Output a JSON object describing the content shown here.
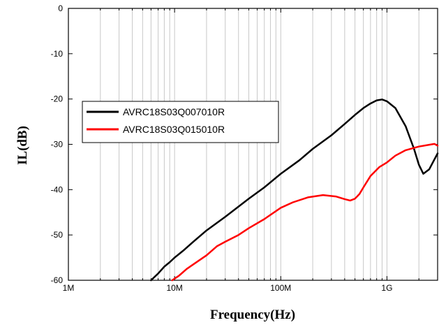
{
  "chart_data": {
    "type": "line",
    "title": "",
    "xlabel": "Frequency(Hz)",
    "ylabel": "IL(dB)",
    "xscale": "log",
    "xlim": [
      1000000,
      3000000000
    ],
    "ylim": [
      -60,
      0
    ],
    "grid": "vertical minor and major log gridlines",
    "legend_position": "upper-left",
    "x_tick_values": [
      1000000,
      10000000,
      100000000,
      1000000000
    ],
    "x_tick_labels": [
      "1M",
      "10M",
      "100M",
      "1G"
    ],
    "y_tick_values": [
      0,
      -10,
      -20,
      -30,
      -40,
      -50,
      -60
    ],
    "y_tick_labels": [
      "0",
      "-10",
      "-20",
      "-30",
      "-40",
      "-50",
      "-60"
    ],
    "series": [
      {
        "name": "AVRC18S03Q007010R",
        "color": "#000000",
        "points": [
          [
            6000000,
            -60
          ],
          [
            7000000,
            -58.5
          ],
          [
            8000000,
            -57
          ],
          [
            9000000,
            -56
          ],
          [
            10000000,
            -55
          ],
          [
            12000000,
            -53.5
          ],
          [
            15000000,
            -51.5
          ],
          [
            20000000,
            -49
          ],
          [
            30000000,
            -46
          ],
          [
            50000000,
            -42
          ],
          [
            70000000,
            -39.5
          ],
          [
            100000000,
            -36.5
          ],
          [
            150000000,
            -33.5
          ],
          [
            200000000,
            -31
          ],
          [
            300000000,
            -28
          ],
          [
            400000000,
            -25.5
          ],
          [
            500000000,
            -23.5
          ],
          [
            600000000,
            -22
          ],
          [
            700000000,
            -21
          ],
          [
            800000000,
            -20.3
          ],
          [
            900000000,
            -20.1
          ],
          [
            1000000000,
            -20.5
          ],
          [
            1200000000,
            -22
          ],
          [
            1500000000,
            -26
          ],
          [
            1800000000,
            -31
          ],
          [
            2000000000,
            -34.5
          ],
          [
            2200000000,
            -36.5
          ],
          [
            2500000000,
            -35.5
          ],
          [
            3000000000,
            -32
          ]
        ]
      },
      {
        "name": "AVRC18S03Q015010R",
        "color": "#ff0000",
        "points": [
          [
            9500000,
            -60
          ],
          [
            11000000,
            -59
          ],
          [
            13000000,
            -57.5
          ],
          [
            15000000,
            -56.5
          ],
          [
            20000000,
            -54.5
          ],
          [
            25000000,
            -52.5
          ],
          [
            30000000,
            -51.5
          ],
          [
            40000000,
            -50
          ],
          [
            50000000,
            -48.5
          ],
          [
            70000000,
            -46.5
          ],
          [
            100000000,
            -44
          ],
          [
            130000000,
            -42.8
          ],
          [
            180000000,
            -41.7
          ],
          [
            250000000,
            -41.2
          ],
          [
            330000000,
            -41.5
          ],
          [
            400000000,
            -42.1
          ],
          [
            450000000,
            -42.4
          ],
          [
            500000000,
            -42
          ],
          [
            550000000,
            -41
          ],
          [
            600000000,
            -39.5
          ],
          [
            700000000,
            -37
          ],
          [
            850000000,
            -35
          ],
          [
            1000000000,
            -34
          ],
          [
            1200000000,
            -32.5
          ],
          [
            1500000000,
            -31.3
          ],
          [
            2000000000,
            -30.5
          ],
          [
            2500000000,
            -30.1
          ],
          [
            2800000000,
            -29.9
          ],
          [
            3000000000,
            -30.3
          ]
        ]
      }
    ]
  }
}
